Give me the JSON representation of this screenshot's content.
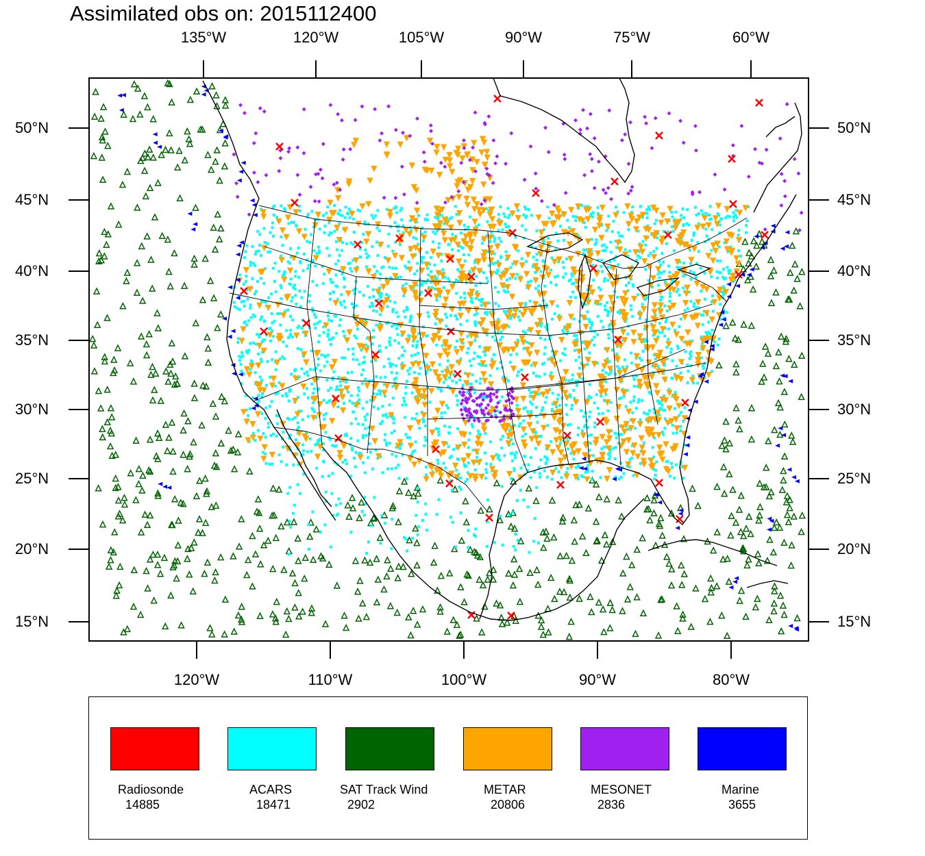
{
  "title": "Assimilated obs on: 2015112400",
  "axes": {
    "top_lon_labels": [
      "135°W",
      "120°W",
      "105°W",
      "90°W",
      "75°W",
      "60°W"
    ],
    "bottom_lon_labels": [
      "120°W",
      "110°W",
      "100°W",
      "90°W",
      "80°W"
    ],
    "lat_labels": [
      "50°N",
      "45°N",
      "40°N",
      "35°N",
      "30°N",
      "25°N",
      "20°N",
      "15°N"
    ]
  },
  "legend": [
    {
      "name": "Radiosonde",
      "count": "14885",
      "color": "#ff0000"
    },
    {
      "name": "ACARS",
      "count": "18471",
      "color": "#00ffff"
    },
    {
      "name": "SAT Track Wind",
      "count": "2902",
      "color": "#006400"
    },
    {
      "name": "METAR",
      "count": "20806",
      "color": "#ffa500"
    },
    {
      "name": "MESONET",
      "count": "2836",
      "color": "#a020f0"
    },
    {
      "name": "Marine",
      "count": "3655",
      "color": "#0000ff"
    }
  ],
  "chart_data": {
    "type": "scatter",
    "projection": "lambert-conformal",
    "region": "North America / CONUS",
    "lat_range": [
      14,
      53
    ],
    "lon_range": [
      -128,
      -74
    ],
    "series": [
      {
        "name": "Radiosonde",
        "marker": "x",
        "color": "#ff0000"
      },
      {
        "name": "ACARS",
        "marker": "square",
        "color": "#00ffff"
      },
      {
        "name": "SAT Track Wind",
        "marker": "triangle-up-open",
        "color": "#006400"
      },
      {
        "name": "METAR",
        "marker": "triangle-down",
        "color": "#ffa500"
      },
      {
        "name": "MESONET",
        "marker": "diamond",
        "color": "#a020f0"
      },
      {
        "name": "Marine",
        "marker": "triangle-left",
        "color": "#0000ff"
      }
    ]
  }
}
